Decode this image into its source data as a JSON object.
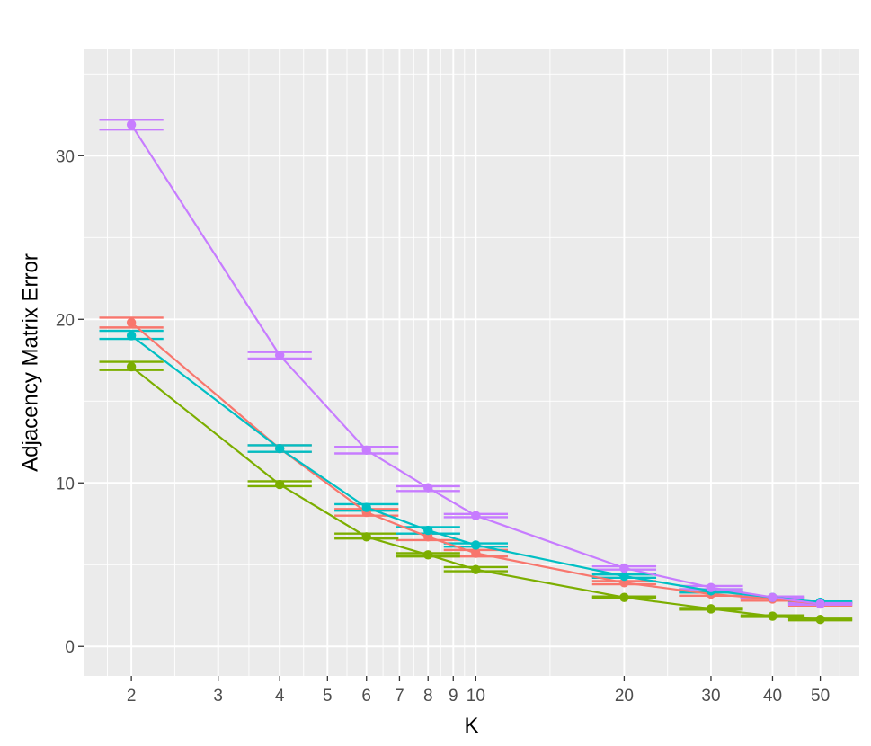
{
  "chart_data": {
    "type": "line",
    "title": "",
    "xlabel": "K",
    "ylabel": "Adjacency Matrix Error",
    "x_scale": "log10",
    "xlim": [
      1.6,
      60
    ],
    "ylim": [
      -1.8,
      36.5
    ],
    "x_ticks": [
      2,
      3,
      4,
      5,
      6,
      7,
      8,
      9,
      10,
      20,
      30,
      40,
      50
    ],
    "x_tick_labels": [
      "2",
      "3",
      "4",
      "5",
      "6",
      "7",
      "8",
      "9",
      "10",
      "20",
      "30",
      "40",
      "50"
    ],
    "y_ticks": [
      0,
      10,
      20,
      30
    ],
    "y_tick_labels": [
      "0",
      "10",
      "20",
      "30"
    ],
    "grid": true,
    "background": "#EBEBEB",
    "legend": "none",
    "x": [
      2,
      4,
      6,
      8,
      10,
      20,
      30,
      40,
      50
    ],
    "series": [
      {
        "color": "#F8766D",
        "values": [
          19.8,
          12.1,
          8.2,
          6.7,
          5.7,
          3.9,
          3.2,
          2.9,
          2.6
        ],
        "err_low": [
          19.5,
          11.9,
          8.0,
          6.5,
          5.5,
          3.8,
          3.1,
          2.8,
          2.5
        ],
        "err_high": [
          20.1,
          12.3,
          8.4,
          6.9,
          5.9,
          4.0,
          3.3,
          3.0,
          2.7
        ]
      },
      {
        "color": "#7CAE00",
        "values": [
          17.1,
          9.9,
          6.7,
          5.6,
          4.7,
          3.0,
          2.3,
          1.85,
          1.65
        ],
        "err_low": [
          16.9,
          9.8,
          6.6,
          5.5,
          4.6,
          2.95,
          2.25,
          1.8,
          1.6
        ],
        "err_high": [
          17.4,
          10.1,
          6.9,
          5.7,
          4.85,
          3.05,
          2.35,
          1.9,
          1.7
        ]
      },
      {
        "color": "#00BFC4",
        "values": [
          19.0,
          12.1,
          8.5,
          7.1,
          6.2,
          4.3,
          3.4,
          3.0,
          2.7
        ],
        "err_low": [
          18.8,
          11.9,
          8.3,
          6.9,
          6.1,
          4.2,
          3.3,
          2.95,
          2.65
        ],
        "err_high": [
          19.3,
          12.3,
          8.7,
          7.3,
          6.3,
          4.4,
          3.5,
          3.05,
          2.75
        ]
      },
      {
        "color": "#C77CFF",
        "values": [
          31.9,
          17.8,
          12.0,
          9.7,
          8.0,
          4.8,
          3.6,
          3.0,
          2.6
        ],
        "err_low": [
          31.6,
          17.6,
          11.8,
          9.5,
          7.9,
          4.7,
          3.5,
          2.95,
          2.55
        ],
        "err_high": [
          32.2,
          18.0,
          12.2,
          9.8,
          8.1,
          4.9,
          3.7,
          3.05,
          2.65
        ]
      }
    ]
  }
}
